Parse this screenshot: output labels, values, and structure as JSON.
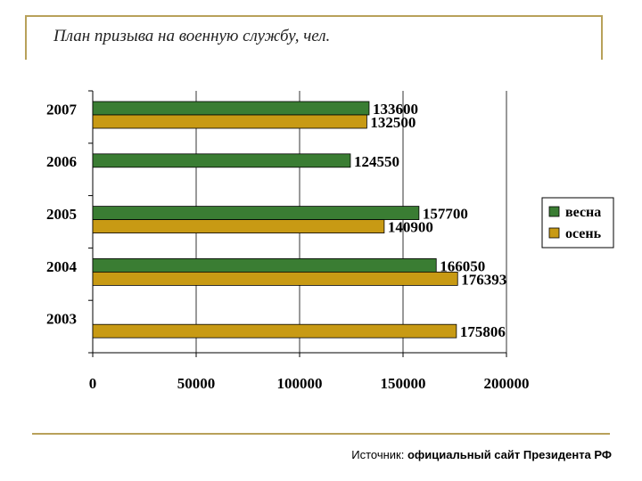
{
  "page": {
    "title": "План призыва на военную службу, чел.",
    "source_prefix": "Источник:",
    "source_text": "официальный сайт Президента РФ"
  },
  "colors": {
    "spring": "#3a7d33",
    "autumn": "#c89a14",
    "frame": "#b8a15a"
  },
  "chart_data": {
    "type": "bar",
    "orientation": "horizontal",
    "categories": [
      "2007",
      "2006",
      "2005",
      "2004",
      "2003"
    ],
    "series": [
      {
        "name": "весна",
        "values": [
          133600,
          124550,
          157700,
          166050,
          null
        ]
      },
      {
        "name": "осень",
        "values": [
          132500,
          null,
          140900,
          176393,
          175806
        ]
      }
    ],
    "value_labels": [
      [
        "133600",
        "132500"
      ],
      [
        "124550",
        ""
      ],
      [
        "157700",
        "140900"
      ],
      [
        "166050",
        "176393"
      ],
      [
        "",
        "175806"
      ]
    ],
    "xlim": [
      0,
      200000
    ],
    "xticks": [
      0,
      50000,
      100000,
      150000,
      200000
    ],
    "xtick_labels": [
      "0",
      "50000",
      "100000",
      "150000",
      "200000"
    ],
    "grid": true,
    "legend_position": "right"
  }
}
